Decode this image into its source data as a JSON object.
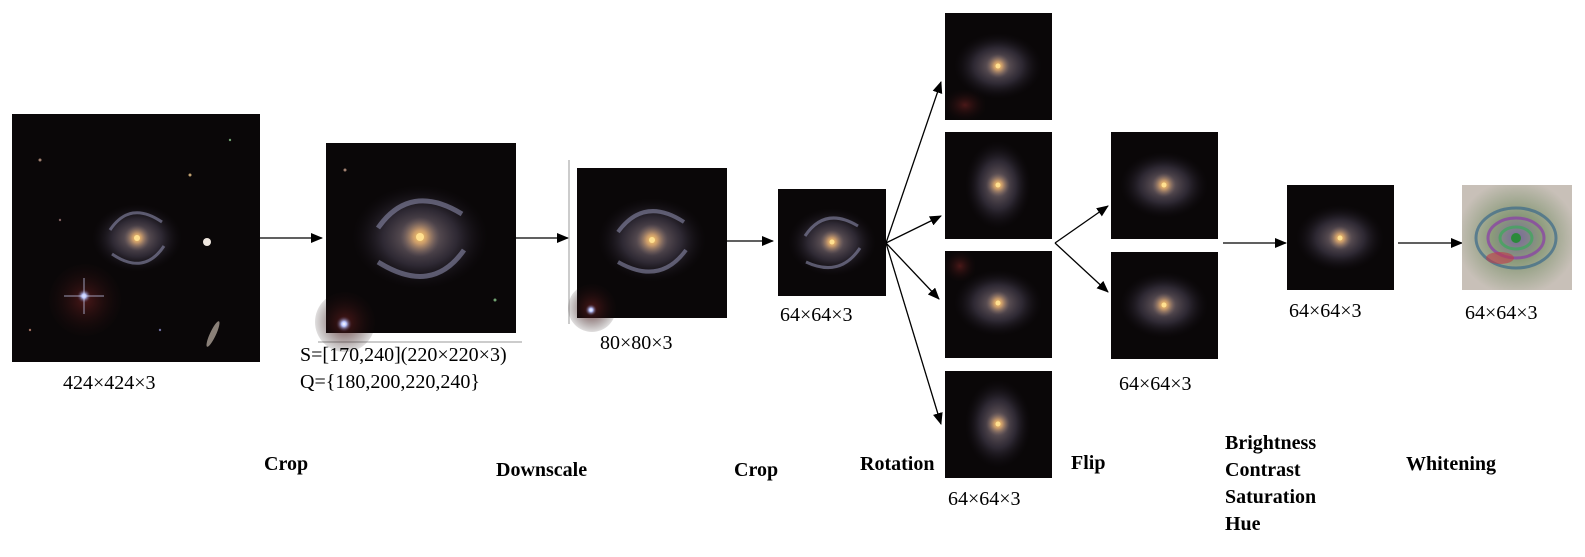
{
  "sizes": {
    "original": "424×424×3",
    "downscaled": "80×80×3",
    "crop": "64×64×3",
    "rotation": "64×64×3",
    "flip": "64×64×3",
    "color": "64×64×3",
    "whitening": "64×64×3"
  },
  "crop_params": {
    "s": "S=[170,240](220×220×3)",
    "q": "Q={180,200,220,240}"
  },
  "steps": {
    "crop1": "Crop",
    "downscale": "Downscale",
    "crop2": "Crop",
    "rotation": "Rotation",
    "flip": "Flip",
    "color": [
      "Brightness",
      "Contrast",
      "Saturation",
      "Hue"
    ],
    "whitening": "Whitening"
  },
  "colors": {
    "background": "#ffffff",
    "arrow": "#000000",
    "sky": "#0a0708",
    "galaxy_core": "#f0b060",
    "galaxy_arm": "#9aa0c0"
  }
}
